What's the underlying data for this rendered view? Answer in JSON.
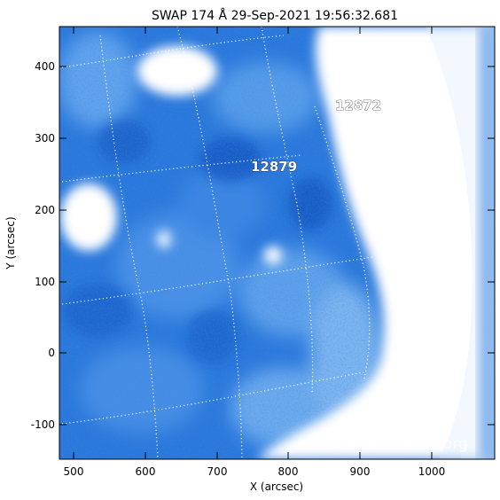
{
  "title": "SWAP 174 Å 29-Sep-2021 19:56:32.681",
  "axes": {
    "x_label": "X (arcsec)",
    "y_label": "Y (arcsec)",
    "x_ticks": [
      "500",
      "600",
      "700",
      "800",
      "900",
      "1000"
    ],
    "y_ticks": [
      "400",
      "300",
      "200",
      "100",
      "0",
      "-100"
    ]
  },
  "active_regions": [
    {
      "label": "12872"
    },
    {
      "label": "12879"
    }
  ],
  "watermark": "SolarMonitor.org",
  "colors": {
    "image_blue": "#1f6fd6",
    "image_light": "#8fc4f4",
    "grid_line": "#ffffff"
  }
}
